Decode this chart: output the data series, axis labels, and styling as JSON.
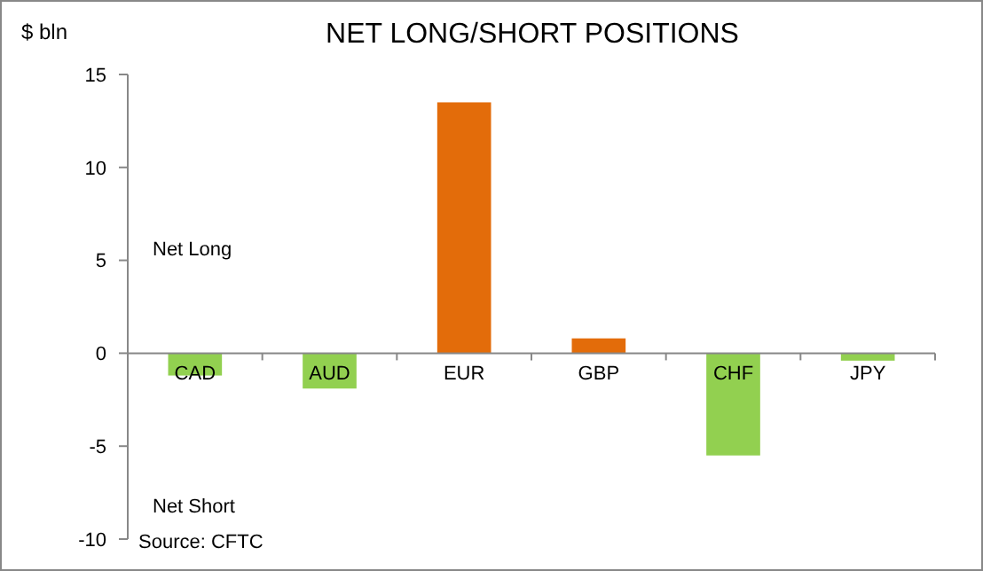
{
  "chart_data": {
    "type": "bar",
    "title": "NET LONG/SHORT POSITIONS",
    "ylabel": "$ bln",
    "categories": [
      "CAD",
      "AUD",
      "EUR",
      "GBP",
      "CHF",
      "JPY"
    ],
    "values": [
      -1.2,
      -1.9,
      13.5,
      0.8,
      -5.5,
      -0.4
    ],
    "colors": [
      "#92d050",
      "#92d050",
      "#e36c0a",
      "#e36c0a",
      "#92d050",
      "#92d050"
    ],
    "ylim": [
      -10,
      15
    ],
    "yticks": [
      -10,
      -5,
      0,
      5,
      10,
      15
    ],
    "annotations": [
      "Net Long",
      "Net Short",
      "Source: CFTC"
    ]
  }
}
